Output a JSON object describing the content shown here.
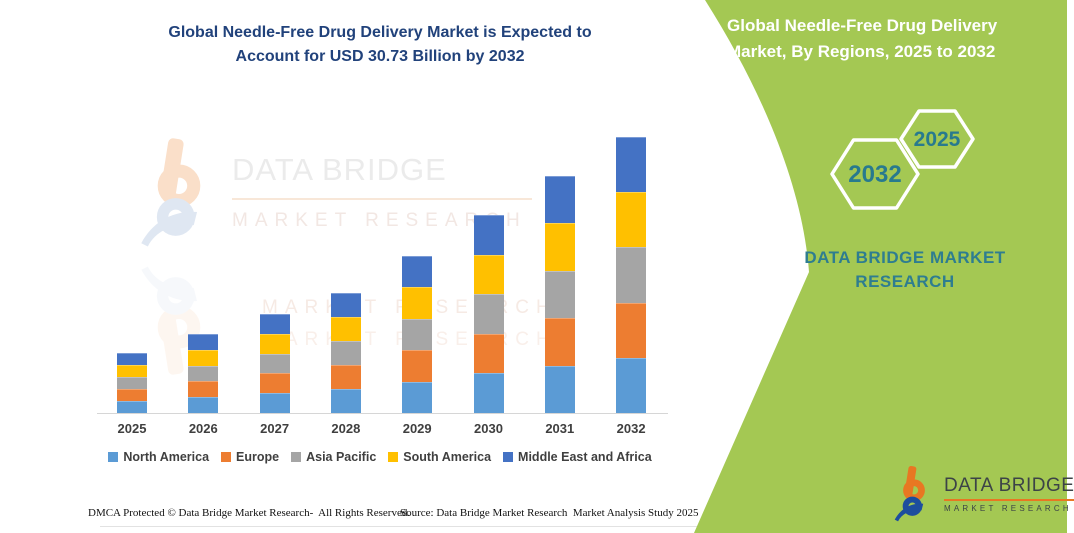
{
  "title": "Global Needle-Free Drug Delivery Market is Expected to Account for USD 30.73 Billion by 2032",
  "chart_data": {
    "type": "bar",
    "stacked": true,
    "title": "Global Needle-Free Drug Delivery Market is Expected to Account for USD 30.73 Billion by 2032",
    "unit": "USD Billion",
    "categories": [
      "2025",
      "2026",
      "2027",
      "2028",
      "2029",
      "2030",
      "2031",
      "2032"
    ],
    "series": [
      {
        "name": "North America",
        "color": "#5B9BD5",
        "values": [
          1.34,
          1.76,
          2.2,
          2.68,
          3.5,
          4.4,
          5.28,
          6.15
        ]
      },
      {
        "name": "Europe",
        "color": "#ED7D31",
        "values": [
          1.34,
          1.76,
          2.2,
          2.68,
          3.5,
          4.4,
          5.28,
          6.15
        ]
      },
      {
        "name": "Asia Pacific",
        "color": "#A5A5A5",
        "values": [
          1.34,
          1.76,
          2.2,
          2.68,
          3.5,
          4.4,
          5.28,
          6.14
        ]
      },
      {
        "name": "South America",
        "color": "#FFC000",
        "values": [
          1.34,
          1.76,
          2.2,
          2.68,
          3.5,
          4.4,
          5.28,
          6.15
        ]
      },
      {
        "name": "Middle East and Africa",
        "color": "#4472C4",
        "values": [
          1.34,
          1.76,
          2.2,
          2.68,
          3.5,
          4.4,
          5.28,
          6.14
        ]
      }
    ],
    "totals_estimated": [
      6.7,
      8.8,
      11.0,
      13.4,
      17.5,
      22.0,
      26.4,
      30.73
    ],
    "highlight_value": "USD 30.73 Billion by 2032",
    "ylim": [
      0,
      32
    ],
    "grid": false,
    "y_axis_visible": false,
    "legend_position": "bottom"
  },
  "watermark": {
    "brand": "DATA BRIDGE",
    "sub": "MARKET RESEARCH"
  },
  "footer": {
    "dmca": "DMCA Protected © Data Bridge Market Research-  All Rights Reserved.",
    "source": "Source: Data Bridge Market Research  Market Analysis Study 2025"
  },
  "side_panel": {
    "heading": "Global Needle-Free Drug Delivery Market, By Regions, 2025 to 2032",
    "hexagons": {
      "back_year": "2032",
      "front_year": "2025"
    },
    "brand_name": "DATA BRIDGE MARKET RESEARCH",
    "logo": {
      "brand": "DATA BRIDGE",
      "sub": "MARKET RESEARCH"
    },
    "colors": {
      "background": "#A4C853",
      "teal_text": "#2E7D90",
      "heading_text": "#FFFFFF"
    }
  },
  "colors": {
    "title_text": "#21427B",
    "axis_label": "#3F3F3F",
    "panel_green": "#A4C853",
    "accent_orange": "#E87722",
    "logo_blue": "#1D4E9E"
  }
}
